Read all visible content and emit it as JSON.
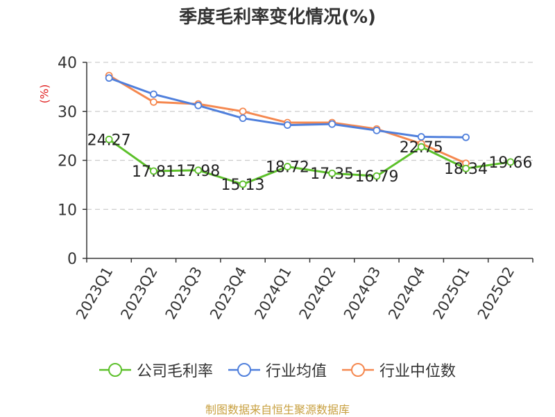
{
  "title": "季度毛利率变化情况(%)",
  "source": "制图数据来自恒生聚源数据库",
  "chart_data": {
    "type": "line",
    "title": "季度毛利率变化情况(%)",
    "ylabel": "(%)",
    "xlabel": "",
    "ylim": [
      0,
      40
    ],
    "yticks": [
      0,
      10,
      20,
      30,
      40
    ],
    "grid": true,
    "legend_position": "bottom",
    "categories": [
      "2023Q1",
      "2023Q2",
      "2023Q3",
      "2023Q4",
      "2024Q1",
      "2024Q2",
      "2024Q3",
      "2024Q4",
      "2025Q1",
      "2025Q2"
    ],
    "series": [
      {
        "name": "公司毛利率",
        "color": "#5cc02a",
        "show_labels": true,
        "values": [
          24.27,
          17.81,
          17.98,
          15.13,
          18.72,
          17.35,
          16.79,
          22.75,
          18.34,
          19.66
        ]
      },
      {
        "name": "行业均值",
        "color": "#4f7fdc",
        "show_labels": false,
        "values": [
          36.8,
          33.5,
          31.2,
          28.6,
          27.2,
          27.4,
          26.1,
          24.8,
          24.7,
          null
        ]
      },
      {
        "name": "行业中位数",
        "color": "#f5884f",
        "show_labels": false,
        "values": [
          37.3,
          31.9,
          31.5,
          30.0,
          27.7,
          27.7,
          26.4,
          23.4,
          19.4,
          null
        ]
      }
    ]
  }
}
